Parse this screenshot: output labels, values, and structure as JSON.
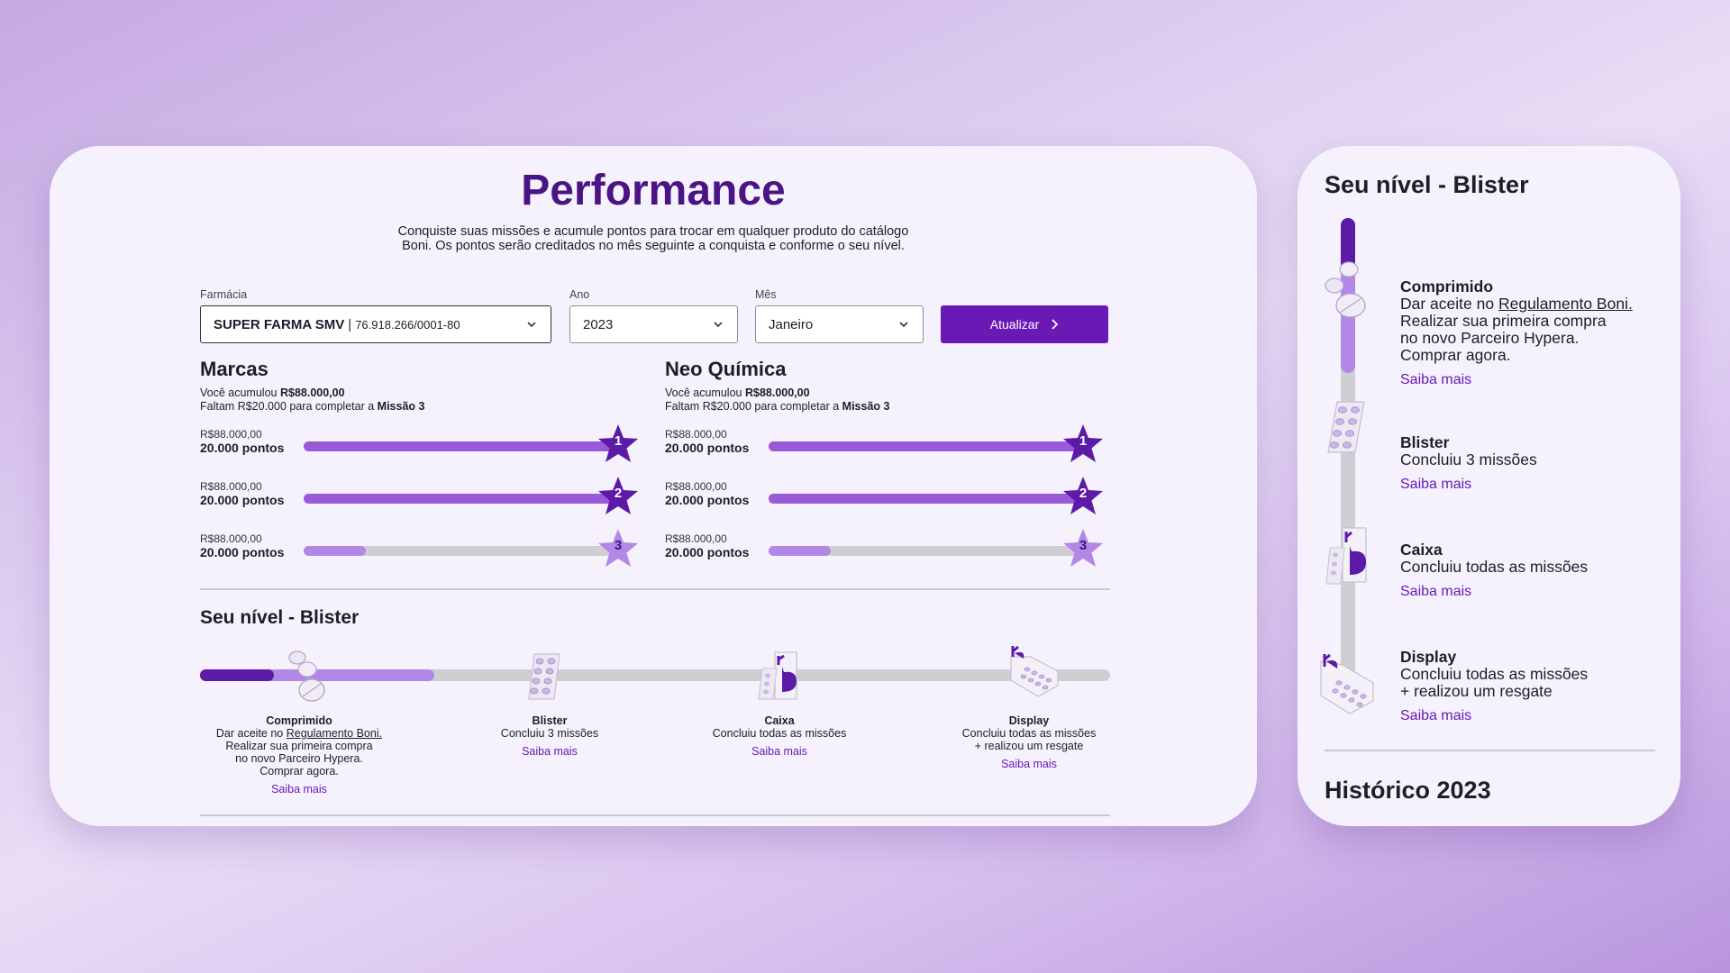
{
  "performance": {
    "title": "Performance",
    "subtitle": "Conquiste suas missões e acumule pontos para trocar em qualquer produto do catálogo Boni. Os pontos serão creditados no mês seguinte a conquista e conforme o seu nível."
  },
  "filters": {
    "pharmacy": {
      "label": "Farmácia",
      "name": "SUPER FARMA SMV",
      "separator": "|",
      "cnpj": "76.918.266/0001-80"
    },
    "year": {
      "label": "Ano",
      "value": "2023"
    },
    "month": {
      "label": "Mês",
      "value": "Janeiro"
    },
    "update_button": "Atualizar"
  },
  "brands": [
    {
      "name": "Marcas",
      "accumulated_prefix": "Você acumulou",
      "accumulated_value": "R$88.000,00",
      "remaining_prefix": "Faltam",
      "remaining_value": "R$20.000 para completar a",
      "remaining_mission": "Missão 3",
      "missions": [
        {
          "value": "R$88.000,00",
          "points": "20.000 pontos",
          "number": "1",
          "progress": 1.0
        },
        {
          "value": "R$88.000,00",
          "points": "20.000 pontos",
          "number": "2",
          "progress": 1.0
        },
        {
          "value": "R$88.000,00",
          "points": "20.000 pontos",
          "number": "3",
          "progress": 0.2
        }
      ]
    },
    {
      "name": "Neo Química",
      "accumulated_prefix": "Você acumulou",
      "accumulated_value": "R$88.000,00",
      "remaining_prefix": "Faltam",
      "remaining_value": "R$20.000 para completar a",
      "remaining_mission": "Missão 3",
      "missions": [
        {
          "value": "R$88.000,00",
          "points": "20.000 pontos",
          "number": "1",
          "progress": 1.0
        },
        {
          "value": "R$88.000,00",
          "points": "20.000 pontos",
          "number": "2",
          "progress": 1.0
        },
        {
          "value": "R$88.000,00",
          "points": "20.000 pontos",
          "number": "3",
          "progress": 0.2
        }
      ]
    }
  ],
  "level": {
    "title": "Seu nível -  Blister",
    "side_title": "Seu nível - Blister",
    "stages": [
      {
        "name": "Comprimido",
        "line1_pre": "Dar aceite no",
        "line1_link": "Regulamento Boni.",
        "line2": "Realizar sua primeira compra",
        "line2_main": "Realizar sua primeira compra",
        "line3": "no novo Parceiro Hypera.",
        "line4": "Comprar agora.",
        "link": "Saiba mais"
      },
      {
        "name": "Blister",
        "desc": "Concluiu 3 missões",
        "link": "Saiba mais"
      },
      {
        "name": "Caixa",
        "desc": "Concluiu todas as missões",
        "link": "Saiba mais"
      },
      {
        "name": "Display",
        "desc": "Concluiu todas as missões",
        "desc2": "+ realizou um resgate",
        "link": "Saiba mais"
      }
    ],
    "progress": 0.26
  },
  "history": {
    "title": "Histórico 2023"
  },
  "colors": {
    "primary": "#6a19b4",
    "title": "#4a1485",
    "star_dark": "#5d1aa7",
    "star_light": "#b387e5",
    "bar_fill": "#9a5ad8",
    "bar_track": "#cfcfd3"
  }
}
